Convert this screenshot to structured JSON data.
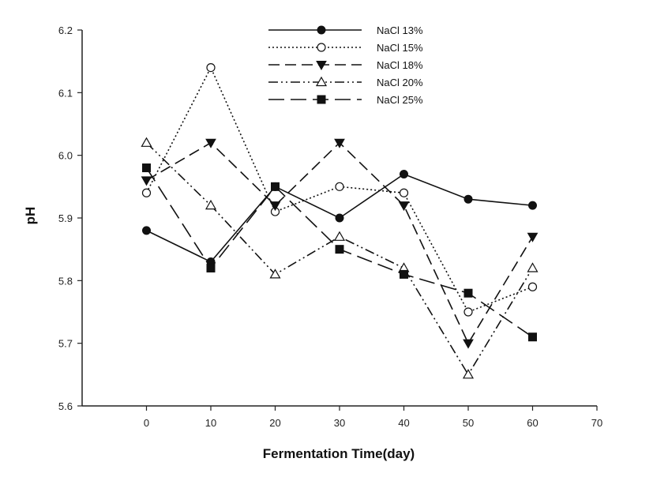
{
  "chart_data": {
    "type": "line",
    "title": "",
    "xlabel": "Fermentation Time(day)",
    "ylabel": "pH",
    "xlim": [
      -10,
      70
    ],
    "ylim": [
      5.6,
      6.2
    ],
    "xticks": [
      0,
      10,
      20,
      30,
      40,
      50,
      60,
      70
    ],
    "xtick_labels": [
      "0",
      "10",
      "20",
      "30",
      "40",
      "50",
      "60",
      "70"
    ],
    "yticks": [
      5.6,
      5.7,
      5.8,
      5.9,
      6.0,
      6.1,
      6.2
    ],
    "ytick_labels": [
      "5.6",
      "5.7",
      "5.8",
      "5.9",
      "6.0",
      "6.1",
      "6.2"
    ],
    "grid": false,
    "legend_position": "top",
    "x": [
      0,
      10,
      20,
      30,
      40,
      50,
      60
    ],
    "series": [
      {
        "name": "NaCl 13%",
        "values": [
          5.88,
          5.83,
          5.95,
          5.9,
          5.97,
          5.93,
          5.92
        ],
        "marker": "filled-circle",
        "line_style": "solid"
      },
      {
        "name": "NaCl 15%",
        "values": [
          5.94,
          6.14,
          5.91,
          5.95,
          5.94,
          5.75,
          5.79
        ],
        "marker": "open-circle",
        "line_style": "dotted"
      },
      {
        "name": "NaCl 18%",
        "values": [
          5.96,
          6.02,
          5.92,
          6.02,
          5.92,
          5.7,
          5.87
        ],
        "marker": "filled-triangle-down",
        "line_style": "dashed"
      },
      {
        "name": "NaCl 20%",
        "values": [
          6.02,
          5.92,
          5.81,
          5.87,
          5.82,
          5.65,
          5.82
        ],
        "marker": "open-triangle-up",
        "line_style": "dash-dot-dot"
      },
      {
        "name": "NaCl 25%",
        "values": [
          5.98,
          5.82,
          5.95,
          5.85,
          5.81,
          5.78,
          5.71
        ],
        "marker": "filled-square",
        "line_style": "long-dash"
      }
    ]
  }
}
